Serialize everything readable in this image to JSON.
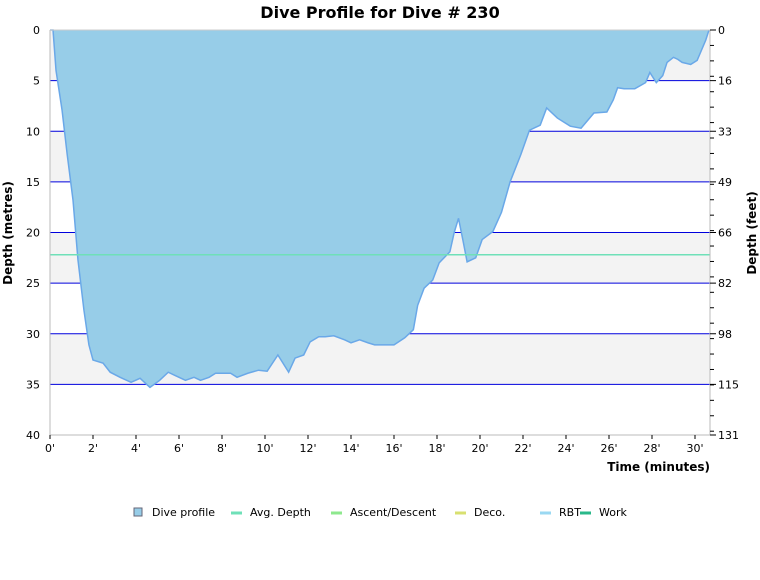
{
  "chart_data": {
    "type": "area",
    "title": "Dive Profile for Dive # 230",
    "xlabel": "Time (minutes)",
    "ylabel": "Depth (metres)",
    "ylabel_right": "Depth (feet)",
    "xlim": [
      0,
      30.65
    ],
    "ylim": [
      0,
      40
    ],
    "y_inverted": true,
    "x_ticks": [
      "0'",
      "2'",
      "4'",
      "6'",
      "8'",
      "10'",
      "12'",
      "14'",
      "16'",
      "18'",
      "20'",
      "22'",
      "24'",
      "26'",
      "28'",
      "30'"
    ],
    "y_ticks": [
      "0",
      "5",
      "10",
      "15",
      "20",
      "25",
      "30",
      "35",
      "40"
    ],
    "y_ticks_right": [
      "0",
      "16",
      "33",
      "49",
      "66",
      "82",
      "98",
      "115",
      "131"
    ],
    "grid": true,
    "avg_depth": 22.2,
    "legend_position": "bottom",
    "legend": [
      {
        "label": "Dive profile",
        "color": "#97cde8",
        "symbol": "box"
      },
      {
        "label": "Avg. Depth",
        "color": "#6fe0b8",
        "symbol": "line"
      },
      {
        "label": "Ascent/Descent",
        "color": "#8ee88e",
        "symbol": "line"
      },
      {
        "label": "Deco.",
        "color": "#d8e070",
        "symbol": "line"
      },
      {
        "label": "RBT",
        "color": "#9ad8f2",
        "symbol": "line"
      },
      {
        "label": "Work",
        "color": "#2ab88a",
        "symbol": "line"
      }
    ],
    "colors": {
      "fill": "#97cde8",
      "outline": "#6aa8e8",
      "grid": "#0000dd",
      "band": "#f3f3f3"
    },
    "series": [
      {
        "time": [
          0,
          0.14,
          0.28,
          0.56,
          0.8,
          1.07,
          1.3,
          1.58,
          1.81,
          2.0,
          2.47,
          2.8,
          3.26,
          3.77,
          4.19,
          4.65,
          5.1,
          5.5,
          5.8,
          6.3,
          6.7,
          7.0,
          7.4,
          7.7,
          8.4,
          8.7,
          9.2,
          9.7,
          10.1,
          10.6,
          11.1,
          11.4,
          11.8,
          12.1,
          12.5,
          12.8,
          13.2,
          13.7,
          14.0,
          14.4,
          14.8,
          15.1,
          16.0,
          16.5,
          16.9,
          17.1,
          17.4,
          17.8,
          18.1,
          18.6,
          18.8,
          19.0,
          19.2,
          19.4,
          19.8,
          20.1,
          20.6,
          21.0,
          21.4,
          21.9,
          22.3,
          22.8,
          23.1,
          23.6,
          24.2,
          24.7,
          25.3,
          25.9,
          26.2,
          26.4,
          26.7,
          27.2,
          27.7,
          27.9,
          28.2,
          28.5,
          28.7,
          29.0,
          29.2,
          29.4,
          29.8,
          30.1,
          30.5,
          30.65
        ],
        "depth": [
          0,
          0,
          4,
          7.9,
          12.3,
          16.8,
          22.7,
          27.7,
          31.1,
          32.6,
          32.9,
          33.8,
          34.3,
          34.8,
          34.4,
          35.3,
          34.6,
          33.8,
          34.1,
          34.6,
          34.3,
          34.6,
          34.3,
          33.9,
          33.9,
          34.3,
          33.9,
          33.6,
          33.7,
          32.1,
          33.8,
          32.4,
          32.1,
          30.8,
          30.3,
          30.3,
          30.2,
          30.6,
          30.9,
          30.6,
          30.9,
          31.1,
          31.1,
          30.4,
          29.6,
          27.2,
          25.5,
          24.7,
          23.0,
          21.9,
          20.0,
          18.6,
          20.7,
          22.9,
          22.5,
          20.7,
          19.9,
          18.0,
          15.0,
          12.3,
          9.9,
          9.4,
          7.7,
          8.7,
          9.5,
          9.7,
          8.2,
          8.1,
          6.9,
          5.7,
          5.8,
          5.8,
          5.2,
          4.2,
          5.2,
          4.5,
          3.2,
          2.7,
          2.9,
          3.2,
          3.4,
          3.0,
          1.0,
          0
        ]
      }
    ]
  }
}
